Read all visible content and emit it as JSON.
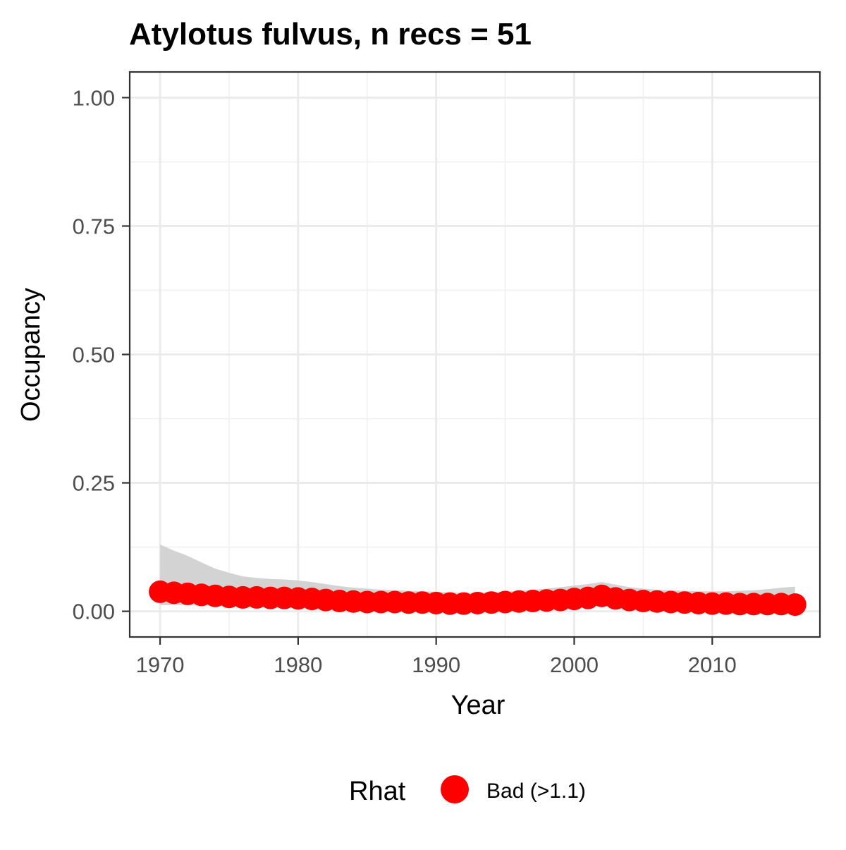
{
  "chart_data": {
    "type": "line",
    "title": "Atylotus fulvus, n recs = 51",
    "xlabel": "Year",
    "ylabel": "Occupancy",
    "xlim": [
      1967.8,
      2017.8
    ],
    "ylim": [
      -0.05,
      1.05
    ],
    "x_ticks": [
      1970,
      1980,
      1990,
      2000,
      2010
    ],
    "y_ticks": [
      0.0,
      0.25,
      0.5,
      0.75,
      1.0
    ],
    "y_tick_labels": [
      "0.00",
      "0.25",
      "0.50",
      "0.75",
      "1.00"
    ],
    "grid": true,
    "legend": {
      "title": "Rhat",
      "placement": "bottom",
      "entries": [
        {
          "label": "Bad (>1.1)",
          "color": "#ff0000"
        }
      ]
    },
    "point_color": "#ff0000",
    "ribbon_color": "#d3d3d3",
    "series": [
      {
        "name": "Bad (>1.1)",
        "x": [
          1970,
          1971,
          1972,
          1973,
          1974,
          1975,
          1976,
          1977,
          1978,
          1979,
          1980,
          1981,
          1982,
          1983,
          1984,
          1985,
          1986,
          1987,
          1988,
          1989,
          1990,
          1991,
          1992,
          1993,
          1994,
          1995,
          1996,
          1997,
          1998,
          1999,
          2000,
          2001,
          2002,
          2003,
          2004,
          2005,
          2006,
          2007,
          2008,
          2009,
          2010,
          2011,
          2012,
          2013,
          2014,
          2015,
          2016
        ],
        "y": [
          0.038,
          0.036,
          0.034,
          0.032,
          0.03,
          0.028,
          0.027,
          0.027,
          0.026,
          0.026,
          0.025,
          0.024,
          0.022,
          0.02,
          0.019,
          0.018,
          0.018,
          0.018,
          0.017,
          0.017,
          0.016,
          0.015,
          0.015,
          0.016,
          0.017,
          0.018,
          0.019,
          0.02,
          0.021,
          0.022,
          0.024,
          0.026,
          0.03,
          0.025,
          0.022,
          0.02,
          0.019,
          0.018,
          0.017,
          0.016,
          0.015,
          0.015,
          0.014,
          0.014,
          0.014,
          0.014,
          0.013
        ],
        "lower": [
          0.012,
          0.012,
          0.012,
          0.011,
          0.011,
          0.011,
          0.01,
          0.01,
          0.01,
          0.01,
          0.01,
          0.009,
          0.009,
          0.008,
          0.008,
          0.008,
          0.008,
          0.008,
          0.007,
          0.007,
          0.007,
          0.006,
          0.006,
          0.006,
          0.007,
          0.007,
          0.007,
          0.008,
          0.008,
          0.009,
          0.01,
          0.011,
          0.012,
          0.01,
          0.009,
          0.008,
          0.008,
          0.007,
          0.007,
          0.007,
          0.006,
          0.006,
          0.006,
          0.006,
          0.006,
          0.006,
          0.005
        ],
        "upper": [
          0.13,
          0.118,
          0.108,
          0.095,
          0.083,
          0.075,
          0.068,
          0.065,
          0.063,
          0.062,
          0.06,
          0.057,
          0.053,
          0.049,
          0.046,
          0.044,
          0.042,
          0.041,
          0.04,
          0.039,
          0.038,
          0.037,
          0.036,
          0.036,
          0.037,
          0.038,
          0.04,
          0.042,
          0.044,
          0.047,
          0.05,
          0.053,
          0.057,
          0.052,
          0.047,
          0.044,
          0.042,
          0.041,
          0.04,
          0.039,
          0.039,
          0.039,
          0.04,
          0.041,
          0.043,
          0.046,
          0.048
        ]
      }
    ]
  }
}
